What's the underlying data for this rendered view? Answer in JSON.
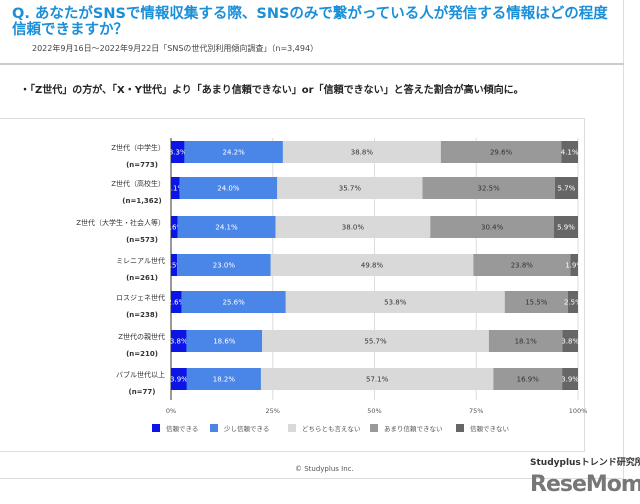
{
  "header": {
    "title": "Q. あなたがSNSで情報収集する際、SNSのみで繋がっている人が発信する情報はどの程度信頼できますか？",
    "subtitle": "2022年9月16日～2022年9月22日「SNSの世代別利用傾向調査」（n=3,494）",
    "bullet": "・「Z世代」の方が、「X・Y世代」より「あまり信頼できない」or「信頼できない」と答えた割合が高い傾向に。"
  },
  "chart_data": {
    "type": "bar",
    "orientation": "horizontal",
    "stacked": true,
    "categories": [
      "Z世代（中学生）",
      "Z世代（高校生）",
      "Z世代（大学生・社会人等）",
      "ミレニアル世代",
      "ロスジェネ世代",
      "Z世代の親世代",
      "バブル世代以上"
    ],
    "category_n": [
      "(n=773)",
      "(n=1,362)",
      "(n=573)",
      "(n=261)",
      "(n=238)",
      "(n=210)",
      "(n=77)"
    ],
    "series": [
      {
        "name": "信頼できる",
        "color": "#0b16e6",
        "values": [
          3.3,
          2.1,
          1.6,
          1.5,
          2.6,
          3.8,
          3.9
        ]
      },
      {
        "name": "少し信頼できる",
        "color": "#4a86e8",
        "values": [
          24.2,
          24.0,
          24.1,
          23.0,
          25.6,
          18.6,
          18.2
        ]
      },
      {
        "name": "どちらとも言えない",
        "color": "#d9d9d9",
        "values": [
          38.8,
          35.7,
          38.0,
          49.8,
          53.8,
          55.7,
          57.1
        ]
      },
      {
        "name": "あまり信頼できない",
        "color": "#999999",
        "values": [
          29.6,
          32.5,
          30.4,
          23.8,
          15.5,
          18.1,
          16.9
        ]
      },
      {
        "name": "信頼できない",
        "color": "#666666",
        "values": [
          4.1,
          5.7,
          5.9,
          1.9,
          2.5,
          3.8,
          3.9
        ]
      }
    ],
    "xlim": [
      0,
      100
    ],
    "xticks": [
      "0%",
      "25%",
      "50%",
      "75%",
      "100%"
    ],
    "grid": true,
    "legend": "bottom"
  },
  "footer": {
    "copyright": "© Studyplus Inc.",
    "lab": "Studyplusトレンド研究所",
    "watermark": "ReseMom"
  }
}
